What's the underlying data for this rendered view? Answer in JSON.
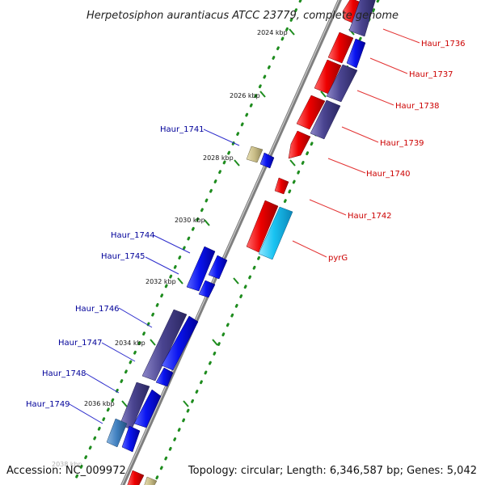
{
  "title": "Herpetosiphon aurantiacus ATCC 23779, complete genome",
  "accession": "Accession: NC_009972",
  "summary": "Topology: circular; Length: 6,346,587 bp; Genes: 5,042",
  "colors": {
    "backbone": "#8a8a8a",
    "tick_green": "#1e8c1e",
    "label_red": "#cc0000",
    "label_blue": "#000099",
    "leader_red": "#e33333",
    "leader_blue": "#2d2dcc",
    "gene_red": "#ee0000",
    "gene_blue": "#0a14f0",
    "gene_purple": "#4a4490",
    "gene_cyan": "#19c3f2",
    "gene_tan": "#c8bc86",
    "gene_steel": "#3f7fbf"
  },
  "kbp_ticks": [
    {
      "label": "2024 kbp"
    },
    {
      "label": "2026 kbp"
    },
    {
      "label": "2028 kbp"
    },
    {
      "label": "2030 kbp"
    },
    {
      "label": "2032 kbp"
    },
    {
      "label": "2034 kbp"
    },
    {
      "label": "2036 kbp"
    },
    {
      "label": "2038 kbp"
    }
  ],
  "genes_right": [
    {
      "label": "Haur_1736"
    },
    {
      "label": "Haur_1737"
    },
    {
      "label": "Haur_1738"
    },
    {
      "label": "Haur_1739"
    },
    {
      "label": "Haur_1740"
    },
    {
      "label": "Haur_1742"
    },
    {
      "label": "pyrG"
    }
  ],
  "genes_left": [
    {
      "label": "Haur_1741"
    },
    {
      "label": "Haur_1744"
    },
    {
      "label": "Haur_1745"
    },
    {
      "label": "Haur_1746"
    },
    {
      "label": "Haur_1747"
    },
    {
      "label": "Haur_1748"
    },
    {
      "label": "Haur_1749"
    }
  ]
}
